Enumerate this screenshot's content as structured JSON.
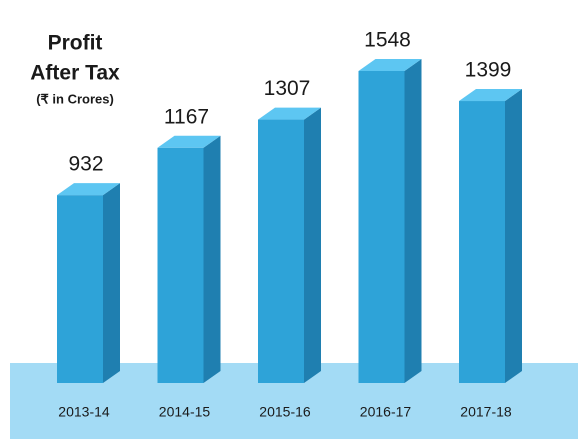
{
  "chart_data": {
    "type": "bar3d",
    "title": [
      "Profit",
      "After Tax"
    ],
    "subtitle": "(₹ in Crores)",
    "categories": [
      "2013-14",
      "2014-15",
      "2015-16",
      "2016-17",
      "2017-18"
    ],
    "values": [
      932,
      1167,
      1307,
      1548,
      1399
    ],
    "color": "#2ea3d8"
  }
}
